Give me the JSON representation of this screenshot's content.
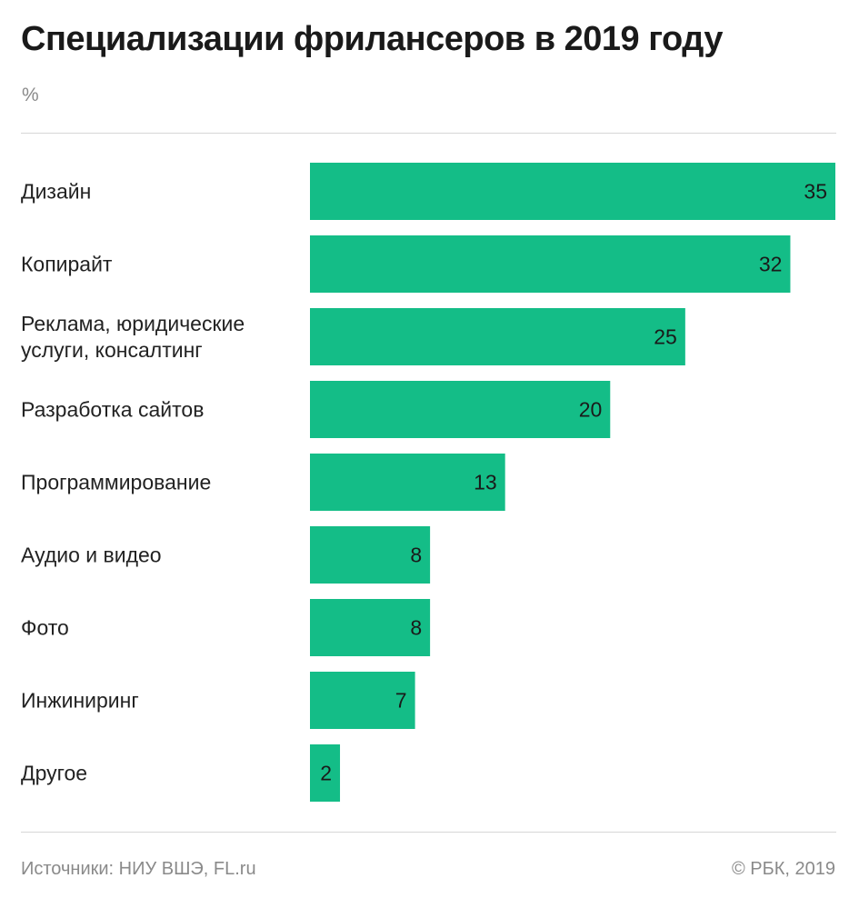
{
  "title": "Специализации фрилансеров в 2019 году",
  "unit": "%",
  "footer": {
    "source": "Источники: НИУ ВШЭ, FL.ru",
    "copyright": "© РБК, 2019"
  },
  "colors": {
    "bar": "#14bd87"
  },
  "chart_data": {
    "type": "bar",
    "orientation": "horizontal",
    "title": "Специализации фрилансеров в 2019 году",
    "unit": "%",
    "categories": [
      [
        "Дизайн"
      ],
      [
        "Копирайт"
      ],
      [
        "Реклама, юридические",
        "услуги, консалтинг"
      ],
      [
        "Разработка сайтов"
      ],
      [
        "Программирование"
      ],
      [
        "Аудио и видео"
      ],
      [
        "Фото"
      ],
      [
        "Инжиниринг"
      ],
      [
        "Другое"
      ]
    ],
    "values": [
      35,
      32,
      25,
      20,
      13,
      8,
      8,
      7,
      2
    ],
    "xlim": [
      0,
      35
    ],
    "grid": false,
    "legend": "none"
  }
}
